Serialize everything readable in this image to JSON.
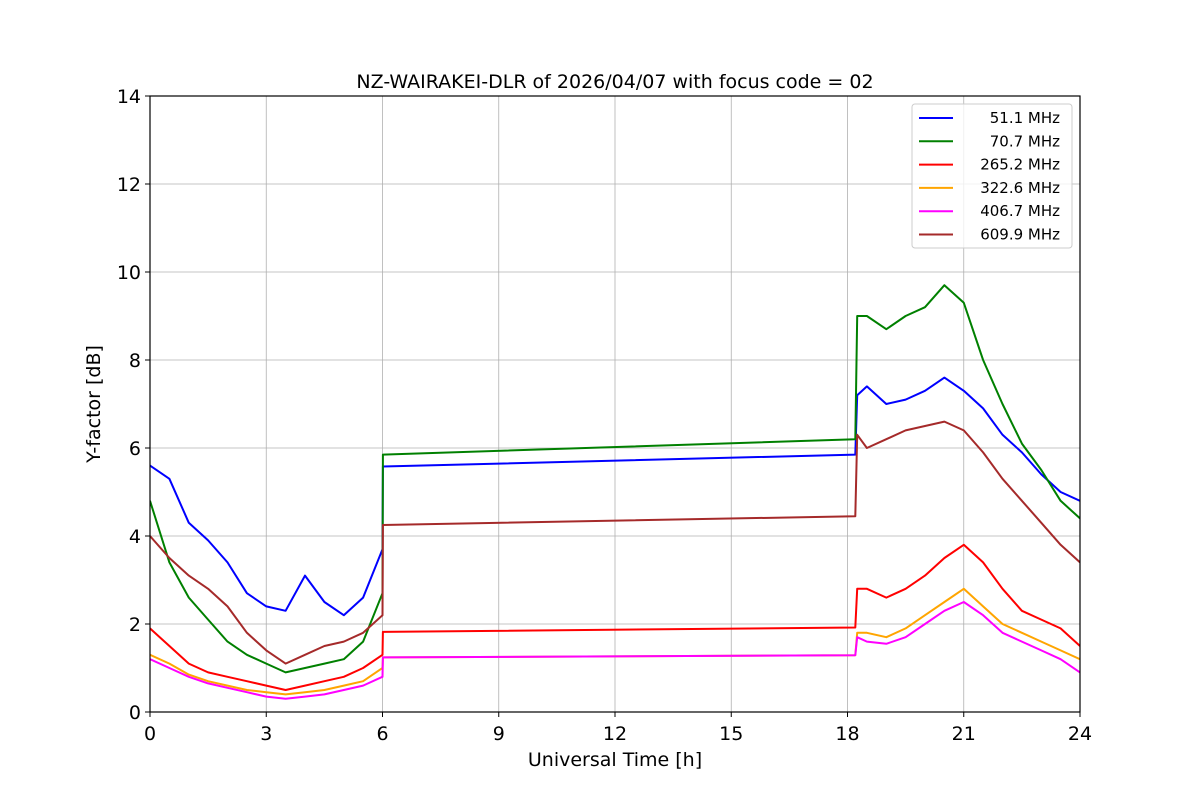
{
  "chart_data": {
    "type": "line",
    "title": "NZ-WAIRAKEI-DLR of 2026/04/07 with focus code = 02",
    "xlabel": "Universal Time [h]",
    "ylabel": "Y-factor [dB]",
    "xlim": [
      0,
      24
    ],
    "ylim": [
      0,
      14
    ],
    "xticks": [
      0,
      3,
      6,
      9,
      12,
      15,
      18,
      21,
      24
    ],
    "yticks": [
      0,
      2,
      4,
      6,
      8,
      10,
      12,
      14
    ],
    "xtick_labels": [
      "0",
      "3",
      "6",
      "9",
      "12",
      "15",
      "18",
      "21",
      "24"
    ],
    "ytick_labels": [
      "0",
      "2",
      "4",
      "6",
      "8",
      "10",
      "12",
      "14"
    ],
    "grid": true,
    "legend_position": "top-right",
    "series": [
      {
        "name": "51.1 MHz",
        "color": "#0000ff",
        "x": [
          0,
          0.5,
          1,
          1.5,
          2,
          2.5,
          3,
          3.5,
          4,
          4.5,
          5,
          5.5,
          6,
          6.01,
          18.2,
          18.25,
          18.5,
          19,
          19.5,
          20,
          20.5,
          21,
          21.5,
          22,
          22.5,
          23,
          23.5,
          24
        ],
        "values": [
          5.6,
          5.3,
          4.3,
          3.9,
          3.4,
          2.7,
          2.4,
          2.3,
          3.1,
          2.5,
          2.2,
          2.6,
          3.7,
          5.58,
          5.85,
          7.2,
          7.4,
          7.0,
          7.1,
          7.3,
          7.6,
          7.3,
          6.9,
          6.3,
          5.9,
          5.4,
          5.0,
          4.8
        ]
      },
      {
        "name": "70.7 MHz",
        "color": "#008000",
        "x": [
          0,
          0.5,
          1,
          1.5,
          2,
          2.5,
          3,
          3.5,
          4,
          4.5,
          5,
          5.5,
          6,
          6.01,
          18.2,
          18.25,
          18.5,
          19,
          19.5,
          20,
          20.5,
          21,
          21.5,
          22,
          22.5,
          23,
          23.5,
          24
        ],
        "values": [
          4.8,
          3.4,
          2.6,
          2.1,
          1.6,
          1.3,
          1.1,
          0.9,
          1.0,
          1.1,
          1.2,
          1.6,
          2.7,
          5.85,
          6.2,
          9.0,
          9.0,
          8.7,
          9.0,
          9.2,
          9.7,
          9.3,
          8.0,
          7.0,
          6.1,
          5.5,
          4.8,
          4.4
        ]
      },
      {
        "name": "265.2 MHz",
        "color": "#ff0000",
        "x": [
          0,
          0.5,
          1,
          1.5,
          2,
          2.5,
          3,
          3.5,
          4,
          4.5,
          5,
          5.5,
          6,
          6.01,
          18.2,
          18.25,
          18.5,
          19,
          19.5,
          20,
          20.5,
          21,
          21.5,
          22,
          22.5,
          23,
          23.5,
          24
        ],
        "values": [
          1.9,
          1.5,
          1.1,
          0.9,
          0.8,
          0.7,
          0.6,
          0.5,
          0.6,
          0.7,
          0.8,
          1.0,
          1.3,
          1.82,
          1.92,
          2.8,
          2.8,
          2.6,
          2.8,
          3.1,
          3.5,
          3.8,
          3.4,
          2.8,
          2.3,
          2.1,
          1.9,
          1.5
        ]
      },
      {
        "name": "322.6 MHz",
        "color": "#ffa500",
        "x": [
          0,
          0.5,
          1,
          1.5,
          2,
          2.5,
          3,
          3.5,
          4,
          4.5,
          5,
          5.5,
          6,
          6.01,
          18.2,
          18.25,
          18.5,
          19,
          19.5,
          20,
          20.5,
          21,
          21.5,
          22,
          22.5,
          23,
          23.5,
          24
        ],
        "values": [
          1.3,
          1.1,
          0.85,
          0.7,
          0.6,
          0.5,
          0.45,
          0.4,
          0.45,
          0.5,
          0.6,
          0.7,
          1.0,
          1.24,
          1.29,
          1.8,
          1.8,
          1.7,
          1.9,
          2.2,
          2.5,
          2.8,
          2.4,
          2.0,
          1.8,
          1.6,
          1.4,
          1.2
        ]
      },
      {
        "name": "406.7 MHz",
        "color": "#ff00ff",
        "x": [
          0,
          0.5,
          1,
          1.5,
          2,
          2.5,
          3,
          3.5,
          4,
          4.5,
          5,
          5.5,
          6,
          6.01,
          18.2,
          18.25,
          18.5,
          19,
          19.5,
          20,
          20.5,
          21,
          21.5,
          22,
          22.5,
          23,
          23.5,
          24
        ],
        "values": [
          1.2,
          1.0,
          0.8,
          0.65,
          0.55,
          0.45,
          0.35,
          0.3,
          0.35,
          0.4,
          0.5,
          0.6,
          0.8,
          1.24,
          1.29,
          1.7,
          1.6,
          1.55,
          1.7,
          2.0,
          2.3,
          2.5,
          2.2,
          1.8,
          1.6,
          1.4,
          1.2,
          0.9
        ]
      },
      {
        "name": "609.9 MHz",
        "color": "#a52a2a",
        "x": [
          0,
          0.5,
          1,
          1.5,
          2,
          2.5,
          3,
          3.5,
          4,
          4.5,
          5,
          5.5,
          6,
          6.01,
          18.2,
          18.25,
          18.5,
          19,
          19.5,
          20,
          20.5,
          21,
          21.5,
          22,
          22.5,
          23,
          23.5,
          24
        ],
        "values": [
          4.0,
          3.5,
          3.1,
          2.8,
          2.4,
          1.8,
          1.4,
          1.1,
          1.3,
          1.5,
          1.6,
          1.8,
          2.2,
          4.25,
          4.45,
          6.3,
          6.0,
          6.2,
          6.4,
          6.5,
          6.6,
          6.4,
          5.9,
          5.3,
          4.8,
          4.3,
          3.8,
          3.4
        ]
      }
    ]
  }
}
